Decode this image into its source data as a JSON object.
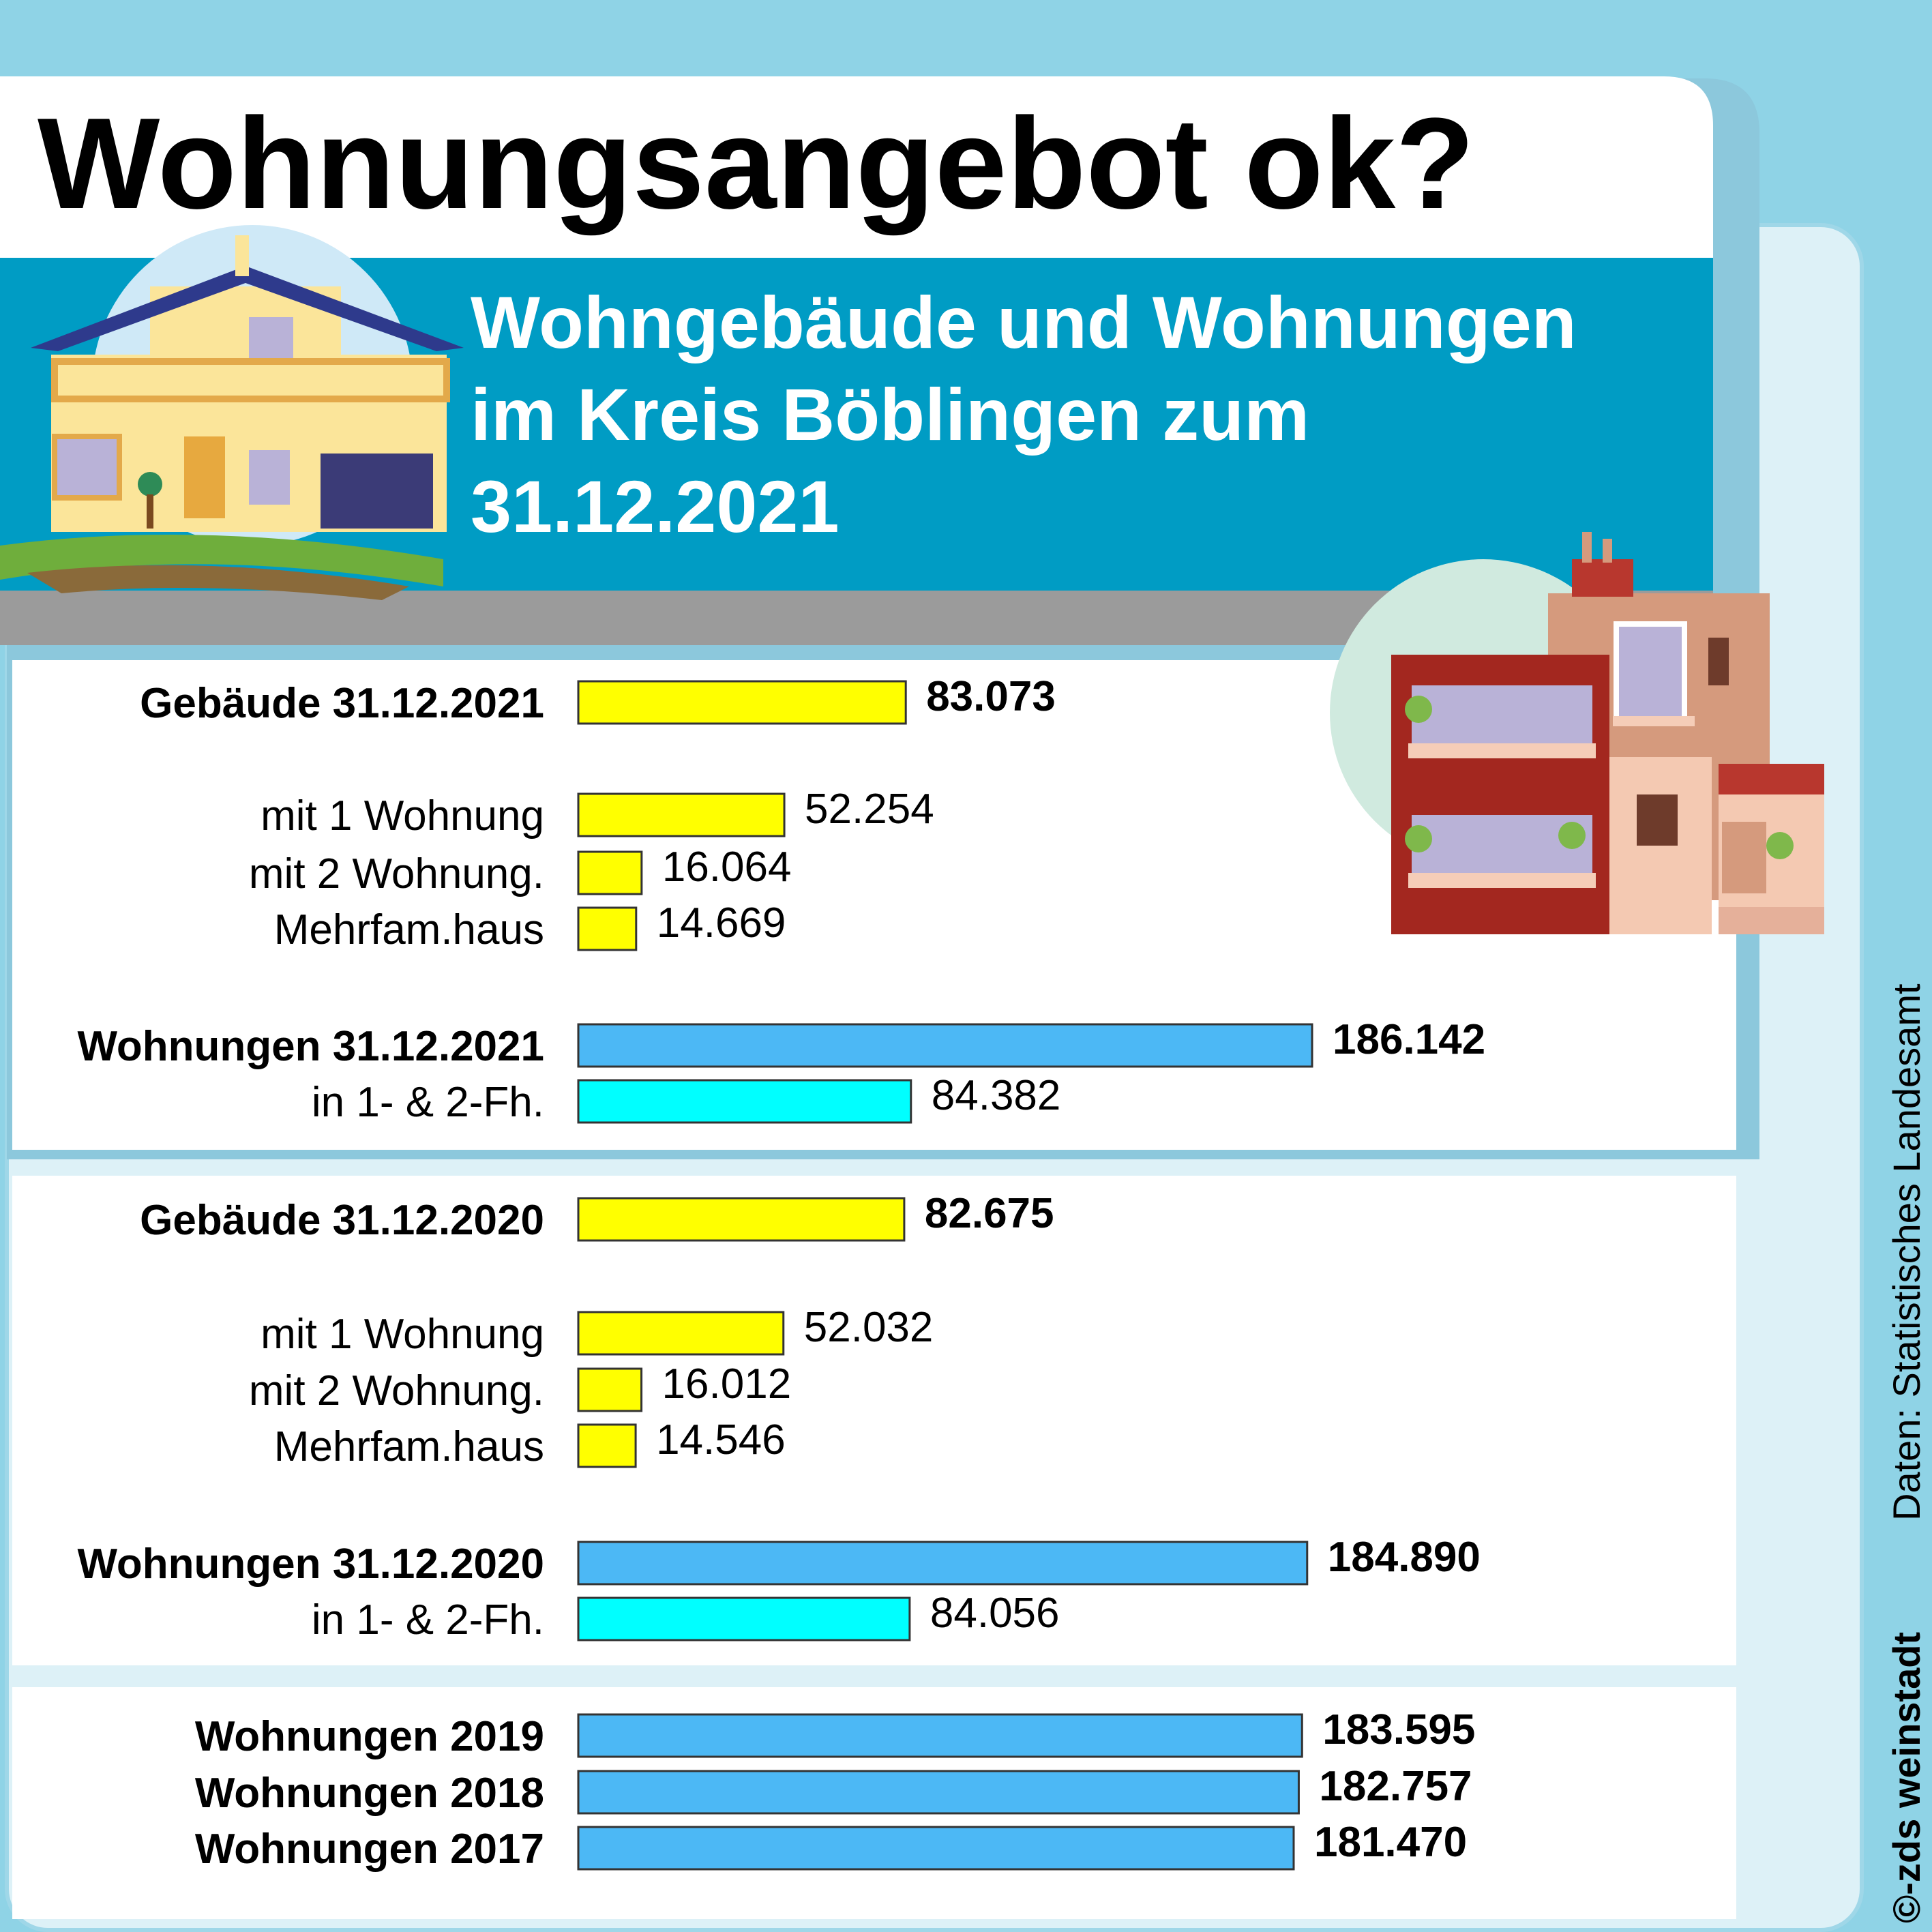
{
  "title": "Wohnungsangebot ok?",
  "subtitle_lines": [
    "Wohngebäude und Wohnungen",
    "im Kreis Böblingen zum",
    "31.12.2021"
  ],
  "source": "Daten: Statistisches Landesamt",
  "credit": "©-zds weinstadt",
  "colors": {
    "background": "#8fd3e6",
    "panel": "#ffffff",
    "inner_bg": "#ddf1f7",
    "banner": "#009cc4",
    "gebaeude": "#ffff00",
    "wohnungen": "#4cb8f5",
    "fh": "#00ffff"
  },
  "chart_data": {
    "type": "bar",
    "orientation": "horizontal",
    "xlim": [
      0,
      186142
    ],
    "groups": [
      {
        "rows": [
          {
            "label": "Gebäude 31.12.2021",
            "value": 83073,
            "value_label": "83.073",
            "bold": true,
            "kind": "gebaeude"
          },
          {
            "label": "mit 1 Wohnung",
            "value": 52254,
            "value_label": "52.254",
            "bold": false,
            "kind": "gebaeude"
          },
          {
            "label": "mit 2 Wohnung.",
            "value": 16064,
            "value_label": "16.064",
            "bold": false,
            "kind": "gebaeude"
          },
          {
            "label": "Mehrfam.haus",
            "value": 14669,
            "value_label": "14.669",
            "bold": false,
            "kind": "gebaeude"
          },
          {
            "label": "Wohnungen 31.12.2021",
            "value": 186142,
            "value_label": "186.142",
            "bold": true,
            "kind": "wohnungen"
          },
          {
            "label": "in 1- & 2-Fh.",
            "value": 84382,
            "value_label": "84.382",
            "bold": false,
            "kind": "fh"
          }
        ]
      },
      {
        "rows": [
          {
            "label": "Gebäude 31.12.2020",
            "value": 82675,
            "value_label": "82.675",
            "bold": true,
            "kind": "gebaeude"
          },
          {
            "label": "mit 1 Wohnung",
            "value": 52032,
            "value_label": "52.032",
            "bold": false,
            "kind": "gebaeude"
          },
          {
            "label": "mit 2 Wohnung.",
            "value": 16012,
            "value_label": "16.012",
            "bold": false,
            "kind": "gebaeude"
          },
          {
            "label": "Mehrfam.haus",
            "value": 14546,
            "value_label": "14.546",
            "bold": false,
            "kind": "gebaeude"
          },
          {
            "label": "Wohnungen 31.12.2020",
            "value": 184890,
            "value_label": "184.890",
            "bold": true,
            "kind": "wohnungen"
          },
          {
            "label": "in 1- & 2-Fh.",
            "value": 84056,
            "value_label": "84.056",
            "bold": false,
            "kind": "fh"
          }
        ]
      },
      {
        "rows": [
          {
            "label": "Wohnungen 2019",
            "value": 183595,
            "value_label": "183.595",
            "bold": true,
            "kind": "wohnungen"
          },
          {
            "label": "Wohnungen 2018",
            "value": 182757,
            "value_label": "182.757",
            "bold": true,
            "kind": "wohnungen"
          },
          {
            "label": "Wohnungen 2017",
            "value": 181470,
            "value_label": "181.470",
            "bold": true,
            "kind": "wohnungen"
          }
        ]
      }
    ]
  }
}
